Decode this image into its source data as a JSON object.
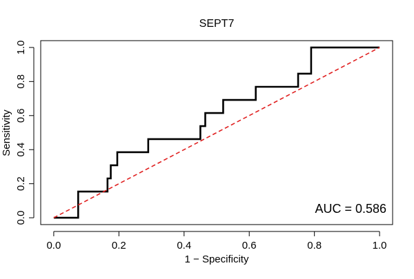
{
  "chart_data": {
    "type": "line",
    "title": "SEPT7",
    "xlabel": "1 − Specificity",
    "ylabel": "Sensitivity",
    "xlim": [
      -0.04,
      1.04
    ],
    "ylim": [
      -0.04,
      1.04
    ],
    "x_ticks": [
      0.0,
      0.2,
      0.4,
      0.6,
      0.8,
      1.0
    ],
    "x_tick_labels": [
      "0.0",
      "0.2",
      "0.4",
      "0.6",
      "0.8",
      "1.0"
    ],
    "y_ticks": [
      0.0,
      0.2,
      0.4,
      0.6,
      0.8,
      1.0
    ],
    "y_tick_labels": [
      "0.0",
      "0.2",
      "0.4",
      "0.6",
      "0.8",
      "1.0"
    ],
    "grid": false,
    "annotation": "AUC = 0.586",
    "series": [
      {
        "style": "step",
        "color": "#000000",
        "x": [
          0.0,
          0.075,
          0.075,
          0.165,
          0.165,
          0.175,
          0.175,
          0.195,
          0.195,
          0.29,
          0.29,
          0.45,
          0.45,
          0.465,
          0.465,
          0.52,
          0.52,
          0.62,
          0.62,
          0.75,
          0.75,
          0.79,
          0.79,
          1.0
        ],
        "y": [
          0.0,
          0.0,
          0.154,
          0.154,
          0.231,
          0.231,
          0.308,
          0.308,
          0.385,
          0.385,
          0.462,
          0.462,
          0.538,
          0.538,
          0.615,
          0.615,
          0.692,
          0.692,
          0.769,
          0.769,
          0.846,
          0.846,
          1.0,
          1.0
        ]
      },
      {
        "style": "dashed",
        "color": "#e02020",
        "x": [
          0.0,
          1.0
        ],
        "y": [
          0.0,
          1.0
        ]
      }
    ]
  }
}
